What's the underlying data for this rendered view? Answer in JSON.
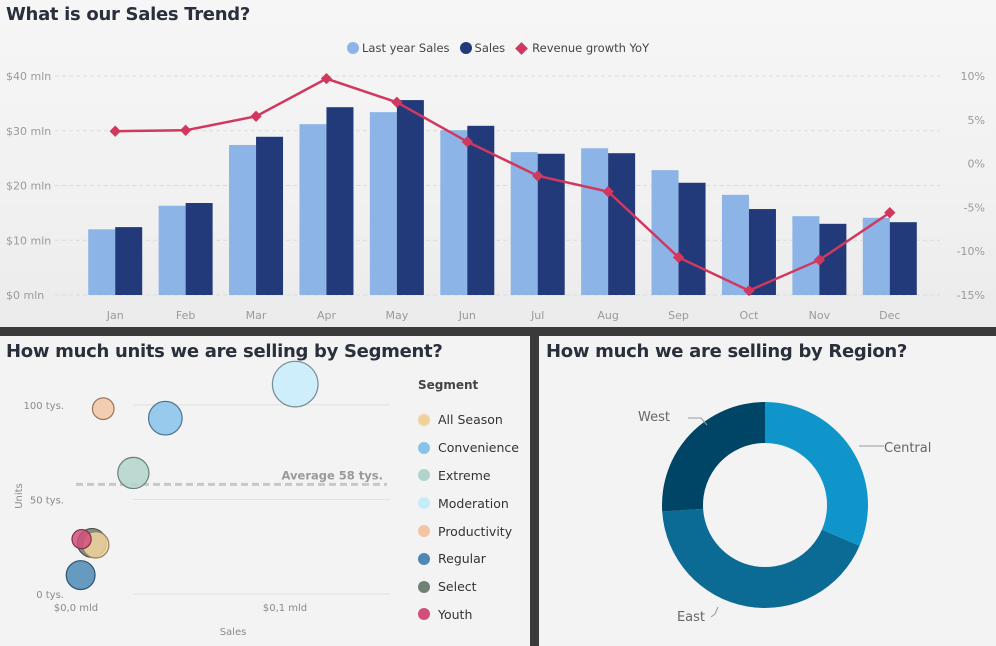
{
  "top_panel": {
    "title": "What is our Sales Trend?"
  },
  "segment_panel": {
    "title": "How much units we are selling by Segment?"
  },
  "region_panel": {
    "title": "How much we are selling by Region?"
  },
  "chart_data": [
    {
      "type": "bar",
      "subtype": "clustered column + line (combo)",
      "title": "What is our Sales Trend?",
      "categories": [
        "Jan",
        "Feb",
        "Mar",
        "Apr",
        "May",
        "Jun",
        "Jul",
        "Aug",
        "Sep",
        "Oct",
        "Nov",
        "Dec"
      ],
      "series": [
        {
          "name": "Last year Sales",
          "axis": "left",
          "color": "#8db4e6",
          "unit": "mln $",
          "values": [
            12.0,
            16.3,
            27.4,
            31.2,
            33.4,
            30.1,
            26.1,
            26.8,
            22.8,
            18.3,
            14.4,
            14.1
          ]
        },
        {
          "name": "Sales",
          "axis": "left",
          "color": "#233a7a",
          "unit": "mln $",
          "values": [
            12.4,
            16.8,
            28.9,
            34.3,
            35.6,
            30.9,
            25.8,
            25.9,
            20.5,
            15.7,
            13.0,
            13.3
          ]
        },
        {
          "name": "Revenue growth YoY",
          "axis": "right",
          "type": "line",
          "marker": "diamond",
          "color": "#d0385f",
          "unit": "%",
          "values": [
            3.7,
            3.8,
            5.4,
            9.7,
            7.0,
            2.5,
            -1.4,
            -3.2,
            -10.7,
            -14.5,
            -11.0,
            -5.6
          ]
        }
      ],
      "y_left": {
        "ticks": [
          "$0 mln",
          "$10 mln",
          "$20 mln",
          "$30 mln",
          "$40 mln"
        ],
        "range": [
          0,
          40
        ]
      },
      "y_right": {
        "ticks": [
          "-15%",
          "-10%",
          "-5%",
          "0%",
          "5%",
          "10%"
        ],
        "range": [
          -15,
          10
        ]
      },
      "legend": {
        "position": "top-center",
        "entries": [
          "Last year Sales",
          "Sales",
          "Revenue growth YoY"
        ]
      },
      "grid": true
    },
    {
      "type": "scatter",
      "subtype": "bubble",
      "title": "How much units we are selling by Segment?",
      "xlabel": "Sales",
      "ylabel": "Units",
      "x_ticks": [
        "$0,0 mld",
        "$0,1 mld"
      ],
      "y_ticks": [
        "0 tys.",
        "50 tys.",
        "100 tys."
      ],
      "x_range": [
        0,
        0.17
      ],
      "y_range": [
        0,
        110
      ],
      "average_line": {
        "label": "Average 58 tys.",
        "value": 58
      },
      "legend": {
        "title": "Segment",
        "position": "right"
      },
      "points": [
        {
          "name": "All Season",
          "color": "#f2d29c",
          "x": 0.011,
          "y": 26,
          "size": 0.55
        },
        {
          "name": "Convenience",
          "color": "#86c2ea",
          "x": 0.048,
          "y": 93,
          "size": 0.7
        },
        {
          "name": "Extreme",
          "color": "#b2d3cb",
          "x": 0.031,
          "y": 64,
          "size": 0.65
        },
        {
          "name": "Moderation",
          "color": "#c6ecfa",
          "x": 0.117,
          "y": 111,
          "size": 0.95
        },
        {
          "name": "Productivity",
          "color": "#f3c5a4",
          "x": 0.015,
          "y": 98,
          "size": 0.45
        },
        {
          "name": "Regular",
          "color": "#4d89b5",
          "x": 0.003,
          "y": 10,
          "size": 0.6
        },
        {
          "name": "Select",
          "color": "#6f8375",
          "x": 0.009,
          "y": 27,
          "size": 0.6
        },
        {
          "name": "Youth",
          "color": "#d24f7c",
          "x": 0.0035,
          "y": 29,
          "size": 0.4
        }
      ]
    },
    {
      "type": "pie",
      "subtype": "donut",
      "title": "How much we are selling by Region?",
      "slices": [
        {
          "label": "Central",
          "value": 31.5,
          "color": "#1095cb"
        },
        {
          "label": "East",
          "value": 42.5,
          "color": "#0c6b94"
        },
        {
          "label": "West",
          "value": 26.0,
          "color": "#004466"
        }
      ]
    }
  ]
}
